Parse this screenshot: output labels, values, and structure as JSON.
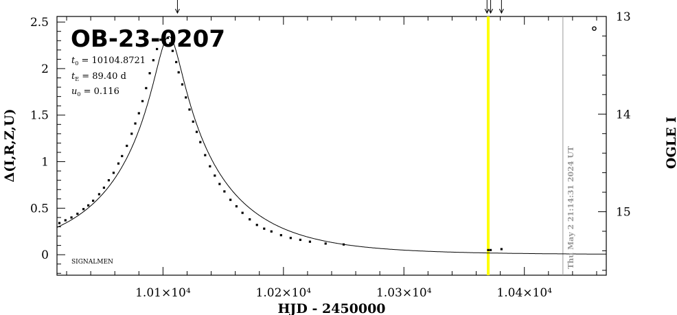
{
  "chart_data": {
    "type": "scatter",
    "title": "OB-23-0207",
    "xlabel": "HJD - 2450000",
    "ylabel_left": "Δ(I,R,Z,U)",
    "ylabel_right": "OGLE I",
    "xlim": [
      10012,
      10468
    ],
    "ylim_left": [
      -0.22,
      2.56
    ],
    "ylim_right": [
      15.65,
      13.0
    ],
    "x_ticks": [
      10100,
      10200,
      10300,
      10400
    ],
    "x_tick_labels": [
      "1.01×10⁴",
      "1.02×10⁴",
      "1.03×10⁴",
      "1.04×10⁴"
    ],
    "y_ticks_left": [
      0,
      0.5,
      1,
      1.5,
      2,
      2.5
    ],
    "y_tick_labels_left": [
      "0",
      "0.5",
      "1",
      "1.5",
      "2",
      "2.5"
    ],
    "y_ticks_right": [
      13,
      14,
      15
    ],
    "y_tick_labels_right": [
      "13",
      "14",
      "15"
    ],
    "params": {
      "t0_label": "t",
      "t0_sub": "0",
      "t0_value": " = 10104.8721",
      "tE_label": "t",
      "tE_sub": "E",
      "tE_value": " = 89.40  d",
      "u0_label": "u",
      "u0_sub": "0",
      "u0_value": " = 0.116"
    },
    "model": {
      "t0": 10104.8721,
      "tE": 89.4,
      "u0": 0.116,
      "baseline": 0.0
    },
    "series": [
      {
        "x": [
          10014,
          10019,
          10024,
          10029,
          10034,
          10038,
          10042,
          10047,
          10051,
          10055,
          10059,
          10063,
          10066,
          10070,
          10074,
          10077,
          10080,
          10083,
          10086,
          10089,
          10092,
          10095,
          10098,
          10101,
          10104,
          10106,
          10108,
          10111,
          10113,
          10116,
          10119,
          10122,
          10125,
          10128,
          10131,
          10135,
          10139,
          10143,
          10147,
          10151,
          10156,
          10161,
          10166,
          10172,
          10178,
          10184,
          10190,
          10198,
          10206,
          10214,
          10222,
          10235,
          10250,
          10370,
          10372,
          10381
        ],
        "y": [
          0.34,
          0.37,
          0.4,
          0.44,
          0.49,
          0.53,
          0.58,
          0.65,
          0.72,
          0.8,
          0.88,
          0.98,
          1.06,
          1.17,
          1.3,
          1.41,
          1.52,
          1.65,
          1.79,
          1.95,
          2.09,
          2.21,
          2.31,
          2.35,
          2.33,
          2.27,
          2.19,
          2.07,
          1.96,
          1.83,
          1.69,
          1.56,
          1.43,
          1.32,
          1.21,
          1.07,
          0.95,
          0.85,
          0.76,
          0.68,
          0.59,
          0.52,
          0.45,
          0.38,
          0.32,
          0.28,
          0.25,
          0.21,
          0.18,
          0.16,
          0.14,
          0.12,
          0.11,
          0.05,
          0.05,
          0.06
        ]
      },
      {
        "x": [
          10458
        ],
        "y": [
          2.43
        ],
        "marker": "open-circle"
      }
    ],
    "markers": {
      "yellow_line_x": 10370,
      "yellow_color": "#ffff00",
      "gray_line_x": 10432,
      "gray_color": "#999999",
      "arrows_x": [
        10112,
        10369,
        10372,
        10381
      ]
    },
    "footer_label": "SIGNALMEN",
    "timestamp": "Thu May  2 21:14:31 2024 UT"
  }
}
